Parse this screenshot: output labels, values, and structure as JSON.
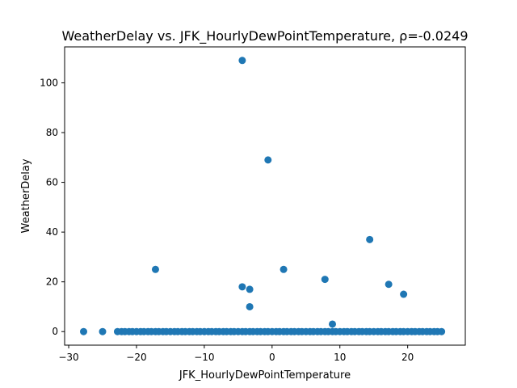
{
  "chart_data": {
    "type": "scatter",
    "title": "WeatherDelay vs. JFK_HourlyDewPointTemperature, ρ=-0.0249",
    "xlabel": "JFK_HourlyDewPointTemperature",
    "ylabel": "WeatherDelay",
    "xlim": [
      -30.6,
      28.5
    ],
    "ylim": [
      -5.45,
      114.45
    ],
    "xticks": [
      -30,
      -20,
      -10,
      0,
      10,
      20
    ],
    "yticks": [
      0,
      20,
      40,
      60,
      80,
      100
    ],
    "grid": false,
    "point_color": "#1f77b4",
    "points": [
      {
        "x": -4.4,
        "y": 109
      },
      {
        "x": -0.6,
        "y": 69
      },
      {
        "x": 14.4,
        "y": 37
      },
      {
        "x": -17.2,
        "y": 25
      },
      {
        "x": 1.7,
        "y": 25
      },
      {
        "x": 7.8,
        "y": 21
      },
      {
        "x": 17.2,
        "y": 19
      },
      {
        "x": -4.4,
        "y": 18
      },
      {
        "x": -3.3,
        "y": 17
      },
      {
        "x": 19.4,
        "y": 15
      },
      {
        "x": -3.3,
        "y": 10
      },
      {
        "x": 8.9,
        "y": 3
      },
      {
        "x": -27.8,
        "y": 0
      },
      {
        "x": -25.0,
        "y": 0
      },
      {
        "x": -22.8,
        "y": 0
      },
      {
        "x": -22.2,
        "y": 0
      },
      {
        "x": -21.7,
        "y": 0
      },
      {
        "x": -21.1,
        "y": 0
      },
      {
        "x": -20.6,
        "y": 0
      },
      {
        "x": -20.0,
        "y": 0
      },
      {
        "x": -19.4,
        "y": 0
      },
      {
        "x": -18.9,
        "y": 0
      },
      {
        "x": -18.3,
        "y": 0
      },
      {
        "x": -17.8,
        "y": 0
      },
      {
        "x": -17.2,
        "y": 0
      },
      {
        "x": -16.7,
        "y": 0
      },
      {
        "x": -16.1,
        "y": 0
      },
      {
        "x": -15.6,
        "y": 0
      },
      {
        "x": -15.0,
        "y": 0
      },
      {
        "x": -14.4,
        "y": 0
      },
      {
        "x": -13.9,
        "y": 0
      },
      {
        "x": -13.3,
        "y": 0
      },
      {
        "x": -12.8,
        "y": 0
      },
      {
        "x": -12.2,
        "y": 0
      },
      {
        "x": -11.7,
        "y": 0
      },
      {
        "x": -11.1,
        "y": 0
      },
      {
        "x": -10.6,
        "y": 0
      },
      {
        "x": -10.0,
        "y": 0
      },
      {
        "x": -9.4,
        "y": 0
      },
      {
        "x": -8.9,
        "y": 0
      },
      {
        "x": -8.3,
        "y": 0
      },
      {
        "x": -7.8,
        "y": 0
      },
      {
        "x": -7.2,
        "y": 0
      },
      {
        "x": -6.7,
        "y": 0
      },
      {
        "x": -6.1,
        "y": 0
      },
      {
        "x": -5.6,
        "y": 0
      },
      {
        "x": -5.0,
        "y": 0
      },
      {
        "x": -4.4,
        "y": 0
      },
      {
        "x": -3.9,
        "y": 0
      },
      {
        "x": -3.3,
        "y": 0
      },
      {
        "x": -2.8,
        "y": 0
      },
      {
        "x": -2.2,
        "y": 0
      },
      {
        "x": -1.7,
        "y": 0
      },
      {
        "x": -1.1,
        "y": 0
      },
      {
        "x": -0.6,
        "y": 0
      },
      {
        "x": 0.0,
        "y": 0
      },
      {
        "x": 0.6,
        "y": 0
      },
      {
        "x": 1.1,
        "y": 0
      },
      {
        "x": 1.7,
        "y": 0
      },
      {
        "x": 2.2,
        "y": 0
      },
      {
        "x": 2.8,
        "y": 0
      },
      {
        "x": 3.3,
        "y": 0
      },
      {
        "x": 3.9,
        "y": 0
      },
      {
        "x": 4.4,
        "y": 0
      },
      {
        "x": 5.0,
        "y": 0
      },
      {
        "x": 5.6,
        "y": 0
      },
      {
        "x": 6.1,
        "y": 0
      },
      {
        "x": 6.7,
        "y": 0
      },
      {
        "x": 7.2,
        "y": 0
      },
      {
        "x": 7.8,
        "y": 0
      },
      {
        "x": 8.3,
        "y": 0
      },
      {
        "x": 8.9,
        "y": 0
      },
      {
        "x": 9.4,
        "y": 0
      },
      {
        "x": 10.0,
        "y": 0
      },
      {
        "x": 10.6,
        "y": 0
      },
      {
        "x": 11.1,
        "y": 0
      },
      {
        "x": 11.7,
        "y": 0
      },
      {
        "x": 12.2,
        "y": 0
      },
      {
        "x": 12.8,
        "y": 0
      },
      {
        "x": 13.3,
        "y": 0
      },
      {
        "x": 13.9,
        "y": 0
      },
      {
        "x": 14.4,
        "y": 0
      },
      {
        "x": 15.0,
        "y": 0
      },
      {
        "x": 15.6,
        "y": 0
      },
      {
        "x": 16.1,
        "y": 0
      },
      {
        "x": 16.7,
        "y": 0
      },
      {
        "x": 17.2,
        "y": 0
      },
      {
        "x": 17.8,
        "y": 0
      },
      {
        "x": 18.3,
        "y": 0
      },
      {
        "x": 18.9,
        "y": 0
      },
      {
        "x": 19.4,
        "y": 0
      },
      {
        "x": 20.0,
        "y": 0
      },
      {
        "x": 20.6,
        "y": 0
      },
      {
        "x": 21.1,
        "y": 0
      },
      {
        "x": 21.7,
        "y": 0
      },
      {
        "x": 22.2,
        "y": 0
      },
      {
        "x": 22.8,
        "y": 0
      },
      {
        "x": 23.3,
        "y": 0
      },
      {
        "x": 23.9,
        "y": 0
      },
      {
        "x": 24.4,
        "y": 0
      },
      {
        "x": 25.0,
        "y": 0
      }
    ]
  }
}
